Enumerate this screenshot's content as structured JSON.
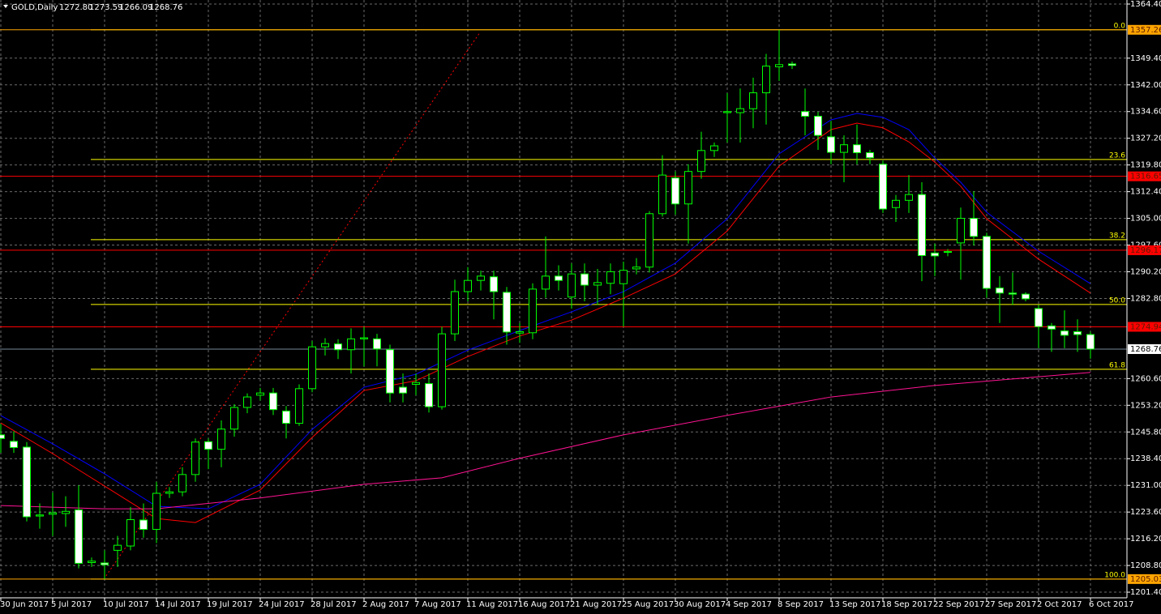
{
  "chart_data": {
    "type": "candlestick",
    "header": {
      "symbol": "GOLD,Daily",
      "ohlc": [
        "1272.80",
        "1273.59",
        "1266.09",
        "1268.76"
      ]
    },
    "categories": [
      "30 Jun 2017",
      null,
      null,
      null,
      "5 Jul 2017",
      null,
      null,
      null,
      "10 Jul 2017",
      null,
      null,
      null,
      "14 Jul 2017",
      null,
      null,
      null,
      "19 Jul 2017",
      null,
      null,
      null,
      "24 Jul 2017",
      null,
      null,
      null,
      "28 Jul 2017",
      null,
      null,
      null,
      "2 Aug 2017",
      null,
      null,
      null,
      "7 Aug 2017",
      null,
      null,
      null,
      "11 Aug 2017",
      null,
      null,
      null,
      "16 Aug 2017",
      null,
      null,
      null,
      "21 Aug 2017",
      null,
      null,
      null,
      "25 Aug 2017",
      null,
      null,
      null,
      "30 Aug 2017",
      null,
      null,
      null,
      "4 Sep 2017",
      null,
      null,
      null,
      "8 Sep 2017",
      null,
      null,
      null,
      "13 Sep 2017",
      null,
      null,
      null,
      "18 Sep 2017",
      null,
      null,
      null,
      "22 Sep 2017",
      null,
      null,
      null,
      "27 Sep 2017",
      null,
      null,
      null,
      "2 Oct 2017",
      null,
      null,
      null,
      "6 Oct 2017"
    ],
    "open": [
      1245,
      1243.2,
      1241.6,
      1222.5,
      1223,
      1223.2,
      1224.2,
      1209.6,
      1209.5,
      1213,
      1214.2,
      1221.4,
      1218.8,
      1228.8,
      1229.2,
      1234,
      1243.1,
      1241,
      1246.6,
      1252.6,
      1256,
      1256.6,
      1251.6,
      1248.2,
      1257.8,
      1269.4,
      1270.2,
      1268.6,
      1271.6,
      1271.6,
      1268.6,
      1258.2,
      1259,
      1259.2,
      1252.8,
      1273,
      1284.7,
      1287.8,
      1288.8,
      1284.5,
      1273.2,
      1273.3,
      1285.4,
      1289,
      1283.2,
      1289.6,
      1286.5,
      1287,
      1286.9,
      1291,
      1291.5,
      1306.3,
      1316.2,
      1309,
      1318,
      1323.8,
      1334.3,
      1334.3,
      1335.4,
      1339.8,
      1347,
      1347.8,
      1334.6,
      1333.3,
      1327.6,
      1323.3,
      1325.4,
      1323.2,
      1320,
      1308,
      1310,
      1311.6,
      1295.4,
      1295.6,
      1298.2,
      1305,
      1300,
      1285.7,
      1284.3,
      1284,
      1280,
      1275.2,
      1273.8,
      1273.6,
      1272.8
    ],
    "high": [
      1248,
      1246,
      1243,
      1226,
      1229,
      1228,
      1231,
      1211,
      1213,
      1217,
      1225,
      1226,
      1232,
      1230.5,
      1236,
      1244,
      1244,
      1249,
      1253.5,
      1256.5,
      1258,
      1258,
      1253,
      1259,
      1271,
      1271.8,
      1271.5,
      1274.5,
      1275,
      1273,
      1270,
      1262,
      1262,
      1262,
      1275,
      1288,
      1291.5,
      1290.5,
      1290.5,
      1286,
      1276,
      1287,
      1300,
      1292,
      1292.5,
      1292.5,
      1291,
      1292.5,
      1293,
      1294,
      1307,
      1322.5,
      1318,
      1320,
      1329,
      1326,
      1339.7,
      1341,
      1344,
      1350.6,
      1357.26,
      1348.5,
      1341,
      1334.5,
      1332,
      1328,
      1331,
      1324,
      1321,
      1311.5,
      1317,
      1315,
      1298,
      1296.5,
      1308,
      1312.5,
      1301,
      1289,
      1290,
      1284.5,
      1281,
      1276,
      1279.5,
      1277,
      1273.59
    ],
    "low": [
      1240,
      1240,
      1221,
      1219,
      1217,
      1219.5,
      1208,
      1208.4,
      1205.03,
      1208.4,
      1213,
      1216.5,
      1215,
      1227.5,
      1228,
      1232,
      1235.5,
      1236,
      1244.5,
      1251,
      1254.5,
      1250.5,
      1244,
      1247.5,
      1256.8,
      1267,
      1266,
      1262,
      1264,
      1264,
      1254,
      1254,
      1256,
      1251.2,
      1252,
      1271,
      1282,
      1285,
      1277,
      1270,
      1270.5,
      1271.5,
      1283,
      1285,
      1280,
      1282,
      1281,
      1284,
      1275,
      1289.5,
      1290,
      1305.5,
      1306,
      1298,
      1316,
      1322,
      1326,
      1326,
      1330,
      1331,
      1343.1,
      1346.4,
      1328,
      1324,
      1320,
      1315,
      1320,
      1320,
      1306.5,
      1304,
      1306.5,
      1287.6,
      1289,
      1294.5,
      1288,
      1297.5,
      1283,
      1276,
      1281,
      1282,
      1269,
      1268,
      1269,
      1268,
      1266.09
    ],
    "close": [
      1244,
      1241.5,
      1222.3,
      1222.8,
      1223.4,
      1223.8,
      1209.4,
      1210,
      1209,
      1214.4,
      1221.5,
      1218.8,
      1228.8,
      1229.2,
      1234,
      1243,
      1241,
      1246.6,
      1252.6,
      1255.5,
      1256.6,
      1252,
      1248.2,
      1257.8,
      1269.4,
      1270.3,
      1268.6,
      1271.6,
      1271.9,
      1268.8,
      1256.6,
      1256.6,
      1259.5,
      1252.8,
      1273,
      1284.7,
      1287.8,
      1289,
      1284.7,
      1273.5,
      1273.6,
      1285.4,
      1289,
      1287.8,
      1289.6,
      1286.5,
      1287.2,
      1290.2,
      1290.6,
      1291.5,
      1306.3,
      1317,
      1309,
      1318,
      1323.8,
      1325.1,
      1334.6,
      1335.4,
      1339.8,
      1347.2,
      1347.6,
      1347.4,
      1333.3,
      1328,
      1323.3,
      1325.4,
      1323.2,
      1321.8,
      1307.6,
      1310,
      1311.6,
      1294.7,
      1294.6,
      1295.8,
      1305,
      1300,
      1285.6,
      1284.3,
      1284,
      1282.7,
      1275,
      1274.3,
      1272.6,
      1272.8,
      1268.76
    ],
    "up_color": "#000000",
    "down_color": "#ffffff",
    "wick_color": "#00ff00",
    "indicators": [
      {
        "color": "#0000ff",
        "at": [
          0,
          4,
          8,
          12,
          16,
          20,
          24,
          28,
          32,
          36,
          40,
          44,
          48,
          52,
          56,
          60,
          64,
          66,
          68,
          70,
          72,
          74,
          76,
          80,
          84
        ],
        "values": [
          1250.35,
          1242.5,
          1234.2,
          1225.2,
          1224.5,
          1231.3,
          1246.5,
          1258.2,
          1261.8,
          1268.5,
          1273.9,
          1279.1,
          1284.7,
          1292.6,
          1304.9,
          1322.9,
          1332.3,
          1334.1,
          1333.0,
          1329.6,
          1321.7,
          1315.0,
          1306.7,
          1295.9,
          1286.9
        ]
      },
      {
        "color": "#ff0000",
        "at": [
          0,
          4,
          8,
          12,
          15,
          20,
          24,
          28,
          32,
          36,
          40,
          44,
          48,
          52,
          56,
          60,
          64,
          66,
          68,
          70,
          72,
          74,
          76,
          80,
          84
        ],
        "values": [
          1248.3,
          1239.8,
          1230.8,
          1221.8,
          1220.7,
          1229.7,
          1244.3,
          1257.3,
          1260.0,
          1266.7,
          1272.4,
          1276.8,
          1282.9,
          1289.6,
          1301.5,
          1319.5,
          1329.6,
          1331.4,
          1330.1,
          1326.2,
          1320.6,
          1313.9,
          1304.9,
          1293.7,
          1284.3
        ]
      },
      {
        "color": "#ff1493",
        "at": [
          0,
          8,
          12,
          20,
          28,
          34,
          40,
          48,
          56,
          64,
          72,
          80,
          84
        ],
        "values": [
          1225.4,
          1224.5,
          1224.5,
          1227.5,
          1231.3,
          1233.1,
          1238.5,
          1245.0,
          1250.4,
          1255.5,
          1258.7,
          1261.1,
          1262.3
        ]
      }
    ],
    "levels": [
      {
        "value": 1357.26,
        "color": "#ffa500"
      },
      {
        "value": 1316.65,
        "color": "#ff0000"
      },
      {
        "value": 1296.17,
        "color": "#ff0000"
      },
      {
        "value": 1274.94,
        "color": "#ff0000"
      },
      {
        "value": 1205.03,
        "color": "#ffa500"
      }
    ],
    "current": {
      "value": 1268.76,
      "color": "#778899"
    },
    "fibo": {
      "color": "#ffff00",
      "levels": [
        {
          "name": "0.0",
          "value": 1357.26
        },
        {
          "name": "23.6",
          "value": 1321.33
        },
        {
          "name": "38.2",
          "value": 1299.11
        },
        {
          "name": "50.0",
          "value": 1281.15
        },
        {
          "name": "61.8",
          "value": 1263.18
        },
        {
          "name": "100.0",
          "value": 1205.03
        }
      ]
    },
    "ylim": [
      1199.84,
      1365.52
    ],
    "yticks": [
      {
        "value": 1364.4,
        "label": "1364.40"
      },
      {
        "value": 1349.4,
        "label": "1349.40"
      },
      {
        "value": 1342.0,
        "label": "1342.00"
      },
      {
        "value": 1334.6,
        "label": "1334.60"
      },
      {
        "value": 1327.2,
        "label": "1327.20"
      },
      {
        "value": 1319.8,
        "label": "1319.80"
      },
      {
        "value": 1312.4,
        "label": "1312.40"
      },
      {
        "value": 1305.0,
        "label": "1305.00"
      },
      {
        "value": 1297.6,
        "label": "1297.60"
      },
      {
        "value": 1290.2,
        "label": "1290.20"
      },
      {
        "value": 1282.8,
        "label": "1282.80"
      },
      {
        "value": 1260.6,
        "label": "1260.60"
      },
      {
        "value": 1253.2,
        "label": "1253.20"
      },
      {
        "value": 1245.8,
        "label": "1245.80"
      },
      {
        "value": 1238.4,
        "label": "1238.40"
      },
      {
        "value": 1231.0,
        "label": "1231.00"
      },
      {
        "value": 1223.6,
        "label": "1223.60"
      },
      {
        "value": 1216.2,
        "label": "1216.20"
      },
      {
        "value": 1208.8,
        "label": "1208.80"
      },
      {
        "value": 1201.4,
        "label": "1201.40"
      }
    ],
    "grid": true
  }
}
